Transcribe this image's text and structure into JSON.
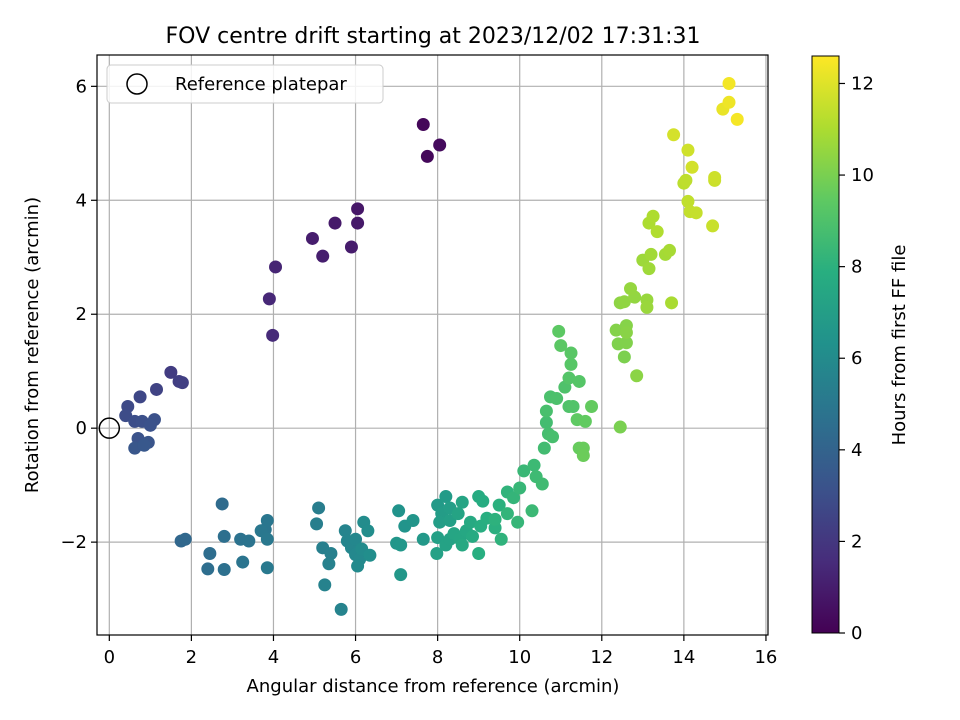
{
  "chart_data": {
    "type": "scatter",
    "title": "FOV centre drift starting at 2023/12/02 17:31:31",
    "xlabel": "Angular distance from reference (arcmin)",
    "ylabel": "Rotation from reference (arcmin)",
    "xlim": [
      -0.3,
      16.05
    ],
    "ylim": [
      -3.63,
      6.55
    ],
    "xticks": [
      0,
      2,
      4,
      6,
      8,
      10,
      12,
      14,
      16
    ],
    "yticks": [
      -2,
      0,
      2,
      4,
      6
    ],
    "grid": true,
    "legend": {
      "position": "top-left",
      "label": "Reference platepar"
    },
    "reference_point": {
      "x": 0,
      "y": 0
    },
    "colorbar": {
      "label": "Hours from first FF file",
      "min": 0,
      "max": 12.6,
      "ticks": [
        0,
        2,
        4,
        6,
        8,
        10,
        12
      ],
      "colormap": "viridis"
    },
    "points": [
      {
        "x": 7.65,
        "y": 5.33,
        "h": 0.2
      },
      {
        "x": 7.75,
        "y": 4.77,
        "h": 0.25
      },
      {
        "x": 8.05,
        "y": 4.97,
        "h": 0.35
      },
      {
        "x": 6.05,
        "y": 3.85,
        "h": 0.8
      },
      {
        "x": 6.05,
        "y": 3.6,
        "h": 0.85
      },
      {
        "x": 5.5,
        "y": 3.6,
        "h": 0.9
      },
      {
        "x": 5.9,
        "y": 3.18,
        "h": 0.95
      },
      {
        "x": 4.95,
        "y": 3.33,
        "h": 1.0
      },
      {
        "x": 5.2,
        "y": 3.02,
        "h": 1.05
      },
      {
        "x": 4.05,
        "y": 2.83,
        "h": 1.3
      },
      {
        "x": 3.9,
        "y": 2.27,
        "h": 1.4
      },
      {
        "x": 3.98,
        "y": 1.63,
        "h": 1.5
      },
      {
        "x": 1.5,
        "y": 0.98,
        "h": 2.2
      },
      {
        "x": 1.7,
        "y": 0.82,
        "h": 2.3
      },
      {
        "x": 1.78,
        "y": 0.8,
        "h": 2.35
      },
      {
        "x": 1.15,
        "y": 0.68,
        "h": 2.5
      },
      {
        "x": 0.75,
        "y": 0.55,
        "h": 2.7
      },
      {
        "x": 0.45,
        "y": 0.38,
        "h": 2.8
      },
      {
        "x": 0.4,
        "y": 0.22,
        "h": 2.9
      },
      {
        "x": 0.62,
        "y": 0.12,
        "h": 3.0
      },
      {
        "x": 0.8,
        "y": 0.12,
        "h": 3.05
      },
      {
        "x": 1.1,
        "y": 0.15,
        "h": 3.1
      },
      {
        "x": 1.0,
        "y": 0.05,
        "h": 3.15
      },
      {
        "x": 0.7,
        "y": -0.18,
        "h": 3.2
      },
      {
        "x": 0.95,
        "y": -0.25,
        "h": 3.3
      },
      {
        "x": 0.62,
        "y": -0.35,
        "h": 3.4
      },
      {
        "x": 0.85,
        "y": -0.3,
        "h": 3.45
      },
      {
        "x": 1.75,
        "y": -1.98,
        "h": 4.2
      },
      {
        "x": 1.85,
        "y": -1.95,
        "h": 4.25
      },
      {
        "x": 2.75,
        "y": -1.33,
        "h": 4.4
      },
      {
        "x": 2.45,
        "y": -2.2,
        "h": 4.5
      },
      {
        "x": 2.4,
        "y": -2.47,
        "h": 4.55
      },
      {
        "x": 2.8,
        "y": -1.9,
        "h": 4.6
      },
      {
        "x": 2.8,
        "y": -2.48,
        "h": 4.65
      },
      {
        "x": 3.2,
        "y": -1.95,
        "h": 4.75
      },
      {
        "x": 3.4,
        "y": -1.98,
        "h": 4.8
      },
      {
        "x": 3.25,
        "y": -2.35,
        "h": 4.85
      },
      {
        "x": 3.8,
        "y": -1.78,
        "h": 4.9
      },
      {
        "x": 3.85,
        "y": -1.62,
        "h": 4.95
      },
      {
        "x": 3.7,
        "y": -1.8,
        "h": 5.0
      },
      {
        "x": 3.85,
        "y": -1.95,
        "h": 5.05
      },
      {
        "x": 3.85,
        "y": -2.45,
        "h": 5.1
      },
      {
        "x": 5.1,
        "y": -1.4,
        "h": 5.3
      },
      {
        "x": 5.05,
        "y": -1.68,
        "h": 5.35
      },
      {
        "x": 5.2,
        "y": -2.1,
        "h": 5.4
      },
      {
        "x": 5.4,
        "y": -2.2,
        "h": 5.45
      },
      {
        "x": 5.35,
        "y": -2.38,
        "h": 5.5
      },
      {
        "x": 5.25,
        "y": -2.75,
        "h": 5.55
      },
      {
        "x": 5.65,
        "y": -3.18,
        "h": 5.6
      },
      {
        "x": 5.75,
        "y": -1.8,
        "h": 5.65
      },
      {
        "x": 5.8,
        "y": -1.98,
        "h": 5.7
      },
      {
        "x": 5.9,
        "y": -2.1,
        "h": 5.75
      },
      {
        "x": 6.0,
        "y": -1.95,
        "h": 5.8
      },
      {
        "x": 6.0,
        "y": -2.22,
        "h": 5.85
      },
      {
        "x": 6.1,
        "y": -2.3,
        "h": 5.9
      },
      {
        "x": 6.05,
        "y": -2.42,
        "h": 5.95
      },
      {
        "x": 6.15,
        "y": -2.12,
        "h": 6.0
      },
      {
        "x": 6.2,
        "y": -1.65,
        "h": 6.05
      },
      {
        "x": 6.3,
        "y": -1.8,
        "h": 6.1
      },
      {
        "x": 6.35,
        "y": -2.23,
        "h": 6.15
      },
      {
        "x": 7.05,
        "y": -1.45,
        "h": 6.4
      },
      {
        "x": 7.2,
        "y": -1.72,
        "h": 6.45
      },
      {
        "x": 7.4,
        "y": -1.62,
        "h": 6.5
      },
      {
        "x": 7.0,
        "y": -2.02,
        "h": 6.55
      },
      {
        "x": 7.1,
        "y": -2.05,
        "h": 6.6
      },
      {
        "x": 7.1,
        "y": -2.57,
        "h": 6.65
      },
      {
        "x": 7.65,
        "y": -1.95,
        "h": 6.7
      },
      {
        "x": 8.0,
        "y": -1.35,
        "h": 6.8
      },
      {
        "x": 8.2,
        "y": -1.2,
        "h": 6.85
      },
      {
        "x": 8.1,
        "y": -1.5,
        "h": 6.9
      },
      {
        "x": 8.05,
        "y": -1.65,
        "h": 6.95
      },
      {
        "x": 8.3,
        "y": -1.4,
        "h": 7.0
      },
      {
        "x": 8.3,
        "y": -1.62,
        "h": 7.05
      },
      {
        "x": 8.0,
        "y": -1.92,
        "h": 7.1
      },
      {
        "x": 7.98,
        "y": -2.2,
        "h": 7.15
      },
      {
        "x": 8.2,
        "y": -2.05,
        "h": 7.2
      },
      {
        "x": 8.3,
        "y": -1.95,
        "h": 7.25
      },
      {
        "x": 8.5,
        "y": -1.5,
        "h": 7.3
      },
      {
        "x": 8.6,
        "y": -1.3,
        "h": 7.35
      },
      {
        "x": 8.4,
        "y": -1.85,
        "h": 7.4
      },
      {
        "x": 8.55,
        "y": -1.95,
        "h": 7.45
      },
      {
        "x": 8.7,
        "y": -1.8,
        "h": 7.5
      },
      {
        "x": 8.6,
        "y": -2.05,
        "h": 7.55
      },
      {
        "x": 8.8,
        "y": -1.65,
        "h": 7.6
      },
      {
        "x": 8.85,
        "y": -1.9,
        "h": 7.65
      },
      {
        "x": 9.0,
        "y": -1.2,
        "h": 7.7
      },
      {
        "x": 9.1,
        "y": -1.28,
        "h": 7.75
      },
      {
        "x": 9.05,
        "y": -1.72,
        "h": 7.8
      },
      {
        "x": 9.0,
        "y": -2.2,
        "h": 7.85
      },
      {
        "x": 9.2,
        "y": -1.58,
        "h": 7.9
      },
      {
        "x": 9.4,
        "y": -1.75,
        "h": 7.95
      },
      {
        "x": 9.5,
        "y": -1.35,
        "h": 8.0
      },
      {
        "x": 9.4,
        "y": -1.6,
        "h": 8.05
      },
      {
        "x": 9.55,
        "y": -1.95,
        "h": 8.1
      },
      {
        "x": 9.7,
        "y": -1.12,
        "h": 8.15
      },
      {
        "x": 9.7,
        "y": -1.5,
        "h": 8.2
      },
      {
        "x": 9.85,
        "y": -1.22,
        "h": 8.25
      },
      {
        "x": 9.95,
        "y": -1.65,
        "h": 8.3
      },
      {
        "x": 10.0,
        "y": -1.05,
        "h": 8.35
      },
      {
        "x": 10.1,
        "y": -0.75,
        "h": 8.4
      },
      {
        "x": 10.3,
        "y": -1.45,
        "h": 8.45
      },
      {
        "x": 10.35,
        "y": -0.65,
        "h": 8.5
      },
      {
        "x": 10.4,
        "y": -0.85,
        "h": 8.55
      },
      {
        "x": 10.55,
        "y": -0.98,
        "h": 8.6
      },
      {
        "x": 10.6,
        "y": -0.35,
        "h": 8.65
      },
      {
        "x": 10.65,
        "y": 0.1,
        "h": 8.7
      },
      {
        "x": 10.7,
        "y": -0.1,
        "h": 8.75
      },
      {
        "x": 10.8,
        "y": -0.15,
        "h": 8.8
      },
      {
        "x": 10.65,
        "y": 0.3,
        "h": 8.85
      },
      {
        "x": 10.75,
        "y": 0.55,
        "h": 8.9
      },
      {
        "x": 10.9,
        "y": 0.52,
        "h": 8.95
      },
      {
        "x": 11.1,
        "y": 0.72,
        "h": 9.0
      },
      {
        "x": 11.2,
        "y": 0.38,
        "h": 9.05
      },
      {
        "x": 11.3,
        "y": 0.38,
        "h": 9.1
      },
      {
        "x": 11.2,
        "y": 0.88,
        "h": 9.15
      },
      {
        "x": 11.45,
        "y": 0.82,
        "h": 9.2
      },
      {
        "x": 11.25,
        "y": 1.12,
        "h": 9.25
      },
      {
        "x": 11.25,
        "y": 1.32,
        "h": 9.3
      },
      {
        "x": 11.0,
        "y": 1.45,
        "h": 9.35
      },
      {
        "x": 10.95,
        "y": 1.7,
        "h": 9.4
      },
      {
        "x": 11.4,
        "y": 0.15,
        "h": 9.45
      },
      {
        "x": 11.6,
        "y": 0.12,
        "h": 9.5
      },
      {
        "x": 11.75,
        "y": 0.38,
        "h": 9.55
      },
      {
        "x": 11.45,
        "y": -0.35,
        "h": 9.6
      },
      {
        "x": 11.55,
        "y": -0.35,
        "h": 9.65
      },
      {
        "x": 11.55,
        "y": -0.48,
        "h": 9.7
      },
      {
        "x": 12.45,
        "y": 0.02,
        "h": 10.0
      },
      {
        "x": 12.55,
        "y": 1.25,
        "h": 10.05
      },
      {
        "x": 12.4,
        "y": 1.48,
        "h": 10.1
      },
      {
        "x": 12.6,
        "y": 1.5,
        "h": 10.15
      },
      {
        "x": 12.35,
        "y": 1.72,
        "h": 10.2
      },
      {
        "x": 12.6,
        "y": 1.8,
        "h": 10.25
      },
      {
        "x": 12.6,
        "y": 1.68,
        "h": 10.3
      },
      {
        "x": 12.85,
        "y": 0.92,
        "h": 10.35
      },
      {
        "x": 12.45,
        "y": 2.2,
        "h": 10.4
      },
      {
        "x": 12.55,
        "y": 2.22,
        "h": 10.45
      },
      {
        "x": 12.8,
        "y": 2.3,
        "h": 10.5
      },
      {
        "x": 12.7,
        "y": 2.45,
        "h": 10.55
      },
      {
        "x": 13.1,
        "y": 2.25,
        "h": 10.6
      },
      {
        "x": 13.1,
        "y": 2.12,
        "h": 10.65
      },
      {
        "x": 13.0,
        "y": 2.95,
        "h": 10.7
      },
      {
        "x": 13.15,
        "y": 2.8,
        "h": 10.75
      },
      {
        "x": 13.2,
        "y": 3.05,
        "h": 10.8
      },
      {
        "x": 13.55,
        "y": 3.05,
        "h": 10.85
      },
      {
        "x": 13.65,
        "y": 3.12,
        "h": 10.9
      },
      {
        "x": 13.7,
        "y": 2.2,
        "h": 10.95
      },
      {
        "x": 13.15,
        "y": 3.6,
        "h": 11.0
      },
      {
        "x": 13.25,
        "y": 3.72,
        "h": 11.05
      },
      {
        "x": 13.35,
        "y": 3.45,
        "h": 11.1
      },
      {
        "x": 14.0,
        "y": 4.3,
        "h": 11.3
      },
      {
        "x": 14.05,
        "y": 4.35,
        "h": 11.35
      },
      {
        "x": 14.1,
        "y": 3.98,
        "h": 11.4
      },
      {
        "x": 14.15,
        "y": 3.8,
        "h": 11.45
      },
      {
        "x": 14.3,
        "y": 3.78,
        "h": 11.5
      },
      {
        "x": 14.7,
        "y": 3.55,
        "h": 11.55
      },
      {
        "x": 14.75,
        "y": 4.35,
        "h": 11.6
      },
      {
        "x": 14.75,
        "y": 4.4,
        "h": 11.65
      },
      {
        "x": 14.1,
        "y": 4.88,
        "h": 11.7
      },
      {
        "x": 14.2,
        "y": 4.58,
        "h": 11.75
      },
      {
        "x": 13.75,
        "y": 5.15,
        "h": 11.8
      },
      {
        "x": 14.95,
        "y": 5.6,
        "h": 12.2
      },
      {
        "x": 15.1,
        "y": 5.72,
        "h": 12.3
      },
      {
        "x": 15.1,
        "y": 6.05,
        "h": 12.4
      },
      {
        "x": 15.3,
        "y": 5.42,
        "h": 12.45
      }
    ]
  }
}
